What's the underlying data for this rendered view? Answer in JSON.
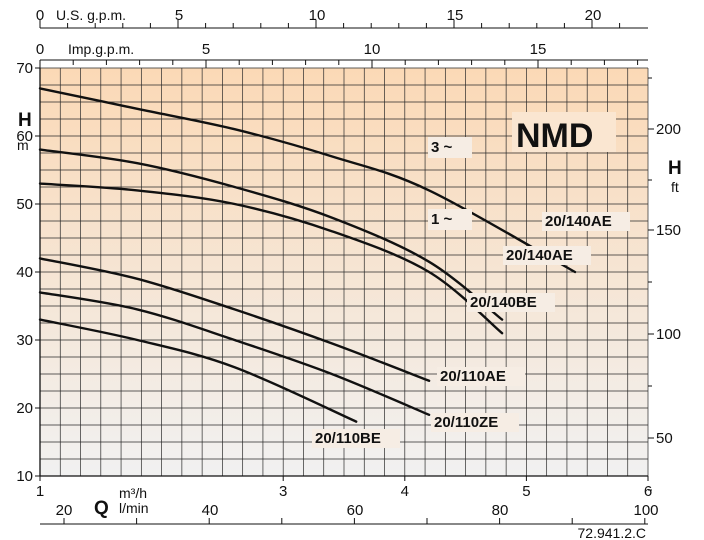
{
  "chart_data": {
    "type": "line",
    "title": "NMD",
    "code": "72.941.2.C",
    "y_left": {
      "symbol": "H",
      "unit": "m",
      "ticks": [
        10,
        20,
        30,
        40,
        50,
        60,
        70
      ],
      "range": [
        10,
        70
      ]
    },
    "y_right": {
      "symbol": "H",
      "unit": "ft",
      "ticks": [
        "50",
        "100",
        "150",
        "200"
      ]
    },
    "x_main": {
      "symbol": "Q",
      "unit_top": "m³/h",
      "unit_bottom": "l/min",
      "range": [
        1,
        6
      ],
      "ticks_m3h": [
        "1",
        "3",
        "4",
        "5",
        "6"
      ],
      "ticks_lmin": [
        "20",
        "40",
        "60",
        "80",
        "100"
      ]
    },
    "x_us": {
      "label": "U.S. g.p.m.",
      "ticks": [
        "0",
        "5",
        "10",
        "15",
        "20"
      ]
    },
    "x_imp": {
      "label": "Imp.g.p.m.",
      "ticks": [
        "0",
        "5",
        "10",
        "15"
      ]
    },
    "phase_labels": [
      "3 ~",
      "1 ~"
    ],
    "series": [
      {
        "name": "20/140AE",
        "phase": "3 ~",
        "x": [
          1.0,
          1.8,
          2.6,
          3.4,
          4.2,
          5.4
        ],
        "y": [
          67,
          64,
          61,
          57,
          52,
          40
        ]
      },
      {
        "name": "20/140AE",
        "phase": "1 ~",
        "x": [
          1.0,
          1.8,
          2.6,
          3.4,
          4.2,
          4.8
        ],
        "y": [
          58,
          56,
          52.5,
          48,
          41.5,
          33
        ]
      },
      {
        "name": "20/140BE",
        "phase": "1 ~",
        "x": [
          1.0,
          1.8,
          2.6,
          3.4,
          4.2,
          4.8
        ],
        "y": [
          53,
          52,
          50,
          46,
          40,
          31
        ]
      },
      {
        "name": "20/110AE",
        "x": [
          1.0,
          1.8,
          2.6,
          3.4,
          4.2
        ],
        "y": [
          42,
          39,
          34.5,
          29.5,
          24
        ]
      },
      {
        "name": "20/110ZE",
        "x": [
          1.0,
          1.8,
          2.6,
          3.4,
          4.2
        ],
        "y": [
          37,
          34.5,
          30,
          25,
          19
        ]
      },
      {
        "name": "20/110BE",
        "x": [
          1.0,
          1.8,
          2.6,
          3.6
        ],
        "y": [
          33,
          30,
          26,
          18
        ]
      }
    ]
  }
}
